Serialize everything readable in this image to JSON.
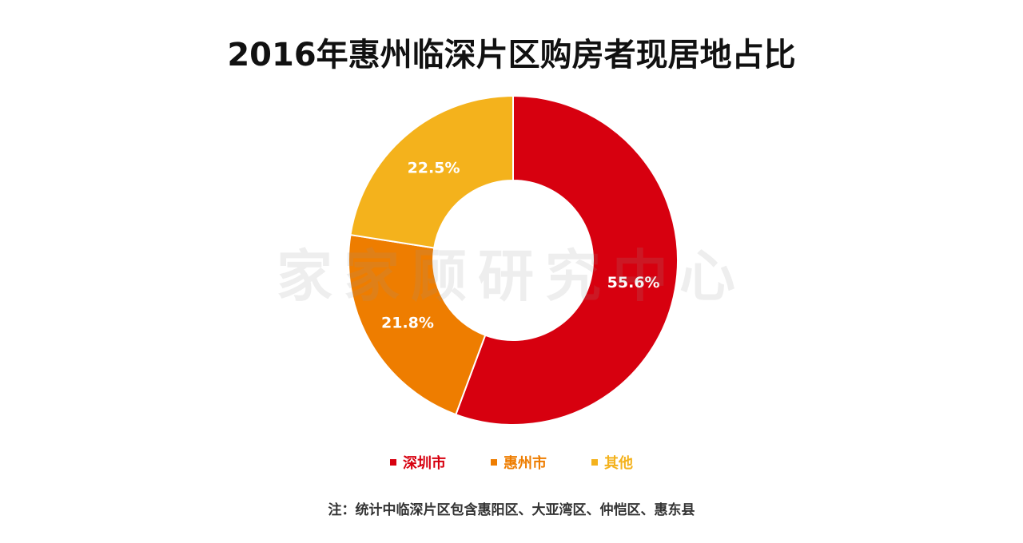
{
  "title": "2016年惠州临深片区购房者现居地占比",
  "watermark": "家家顾研究中心",
  "footnote": "注：统计中临深片区包含惠阳区、大亚湾区、仲恺区、惠东县",
  "chart_data": {
    "type": "pie",
    "donut": true,
    "title": "2016年惠州临深片区购房者现居地占比",
    "legend_position": "bottom",
    "categories": [
      "深圳市",
      "惠州市",
      "其他"
    ],
    "values": [
      55.6,
      21.8,
      22.5
    ],
    "labels": [
      "55.6%",
      "21.8%",
      "22.5%"
    ],
    "colors": [
      "#d7000f",
      "#ee7d00",
      "#f4b21c"
    ]
  }
}
